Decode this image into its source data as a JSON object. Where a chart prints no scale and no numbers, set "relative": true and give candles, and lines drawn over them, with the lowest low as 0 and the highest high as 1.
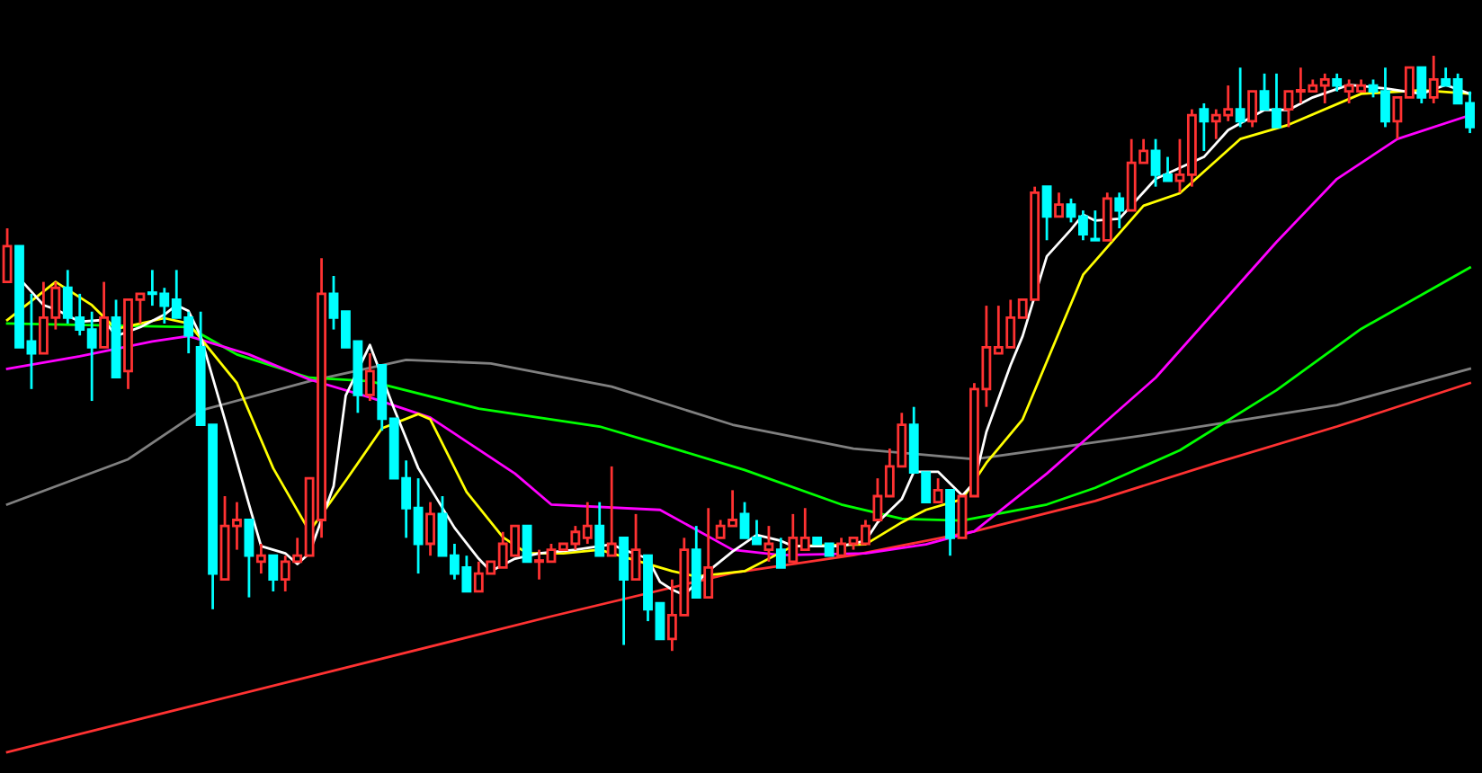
{
  "chart_data": {
    "type": "candlestick",
    "relative": true,
    "grid": false,
    "categories": [
      null,
      null,
      null,
      null,
      null,
      null,
      null,
      null,
      null,
      null,
      null,
      null,
      null,
      null,
      null,
      null,
      null,
      null,
      null,
      null,
      null,
      null,
      null,
      null,
      null,
      null,
      null,
      null,
      null,
      null,
      null,
      null,
      null,
      null,
      null,
      null,
      null,
      null,
      null,
      null,
      null,
      null,
      null,
      null,
      null,
      null,
      null,
      null,
      null,
      null,
      null,
      null,
      null,
      null,
      null,
      null,
      null,
      null,
      null,
      null,
      null,
      null,
      null,
      null,
      null,
      null,
      null,
      null,
      null,
      null,
      null,
      null,
      null,
      null,
      null,
      null,
      null,
      null,
      null,
      null,
      null,
      null,
      null,
      null,
      null,
      null,
      null,
      null,
      null,
      null,
      null,
      null,
      null,
      null,
      null,
      null,
      null,
      null,
      null,
      null,
      null,
      null,
      null,
      null,
      null,
      null,
      null,
      null,
      null,
      null,
      null,
      null,
      null,
      null,
      null,
      null,
      null,
      null,
      null,
      null,
      null,
      null
    ],
    "series": [
      {
        "ohlc": [
          [
            0.62,
            0.71,
            0.62,
            0.68
          ],
          [
            0.68,
            0.68,
            0.51,
            0.51
          ],
          [
            0.52,
            0.6,
            0.44,
            0.5
          ],
          [
            0.5,
            0.62,
            0.5,
            0.56
          ],
          [
            0.56,
            0.62,
            0.54,
            0.61
          ],
          [
            0.61,
            0.64,
            0.55,
            0.56
          ],
          [
            0.56,
            0.6,
            0.53,
            0.54
          ],
          [
            0.54,
            0.57,
            0.42,
            0.51
          ],
          [
            0.51,
            0.62,
            0.51,
            0.56
          ],
          [
            0.56,
            0.59,
            0.46,
            0.46
          ],
          [
            0.47,
            0.59,
            0.44,
            0.59
          ],
          [
            0.59,
            0.6,
            0.55,
            0.6
          ],
          [
            0.6,
            0.64,
            0.58,
            0.6
          ],
          [
            0.6,
            0.61,
            0.55,
            0.58
          ],
          [
            0.59,
            0.64,
            0.56,
            0.56
          ],
          [
            0.56,
            0.57,
            0.5,
            0.53
          ],
          [
            0.51,
            0.57,
            0.38,
            0.38
          ],
          [
            0.38,
            0.38,
            0.07,
            0.13
          ],
          [
            0.12,
            0.26,
            0.12,
            0.21
          ],
          [
            0.21,
            0.25,
            0.17,
            0.22
          ],
          [
            0.22,
            0.22,
            0.09,
            0.16
          ],
          [
            0.15,
            0.18,
            0.13,
            0.16
          ],
          [
            0.16,
            0.16,
            0.1,
            0.12
          ],
          [
            0.12,
            0.16,
            0.1,
            0.15
          ],
          [
            0.15,
            0.19,
            0.15,
            0.16
          ],
          [
            0.16,
            0.29,
            0.16,
            0.29
          ],
          [
            0.22,
            0.66,
            0.19,
            0.6
          ],
          [
            0.6,
            0.63,
            0.54,
            0.56
          ],
          [
            0.57,
            0.57,
            0.51,
            0.51
          ],
          [
            0.52,
            0.52,
            0.4,
            0.43
          ],
          [
            0.43,
            0.5,
            0.42,
            0.47
          ],
          [
            0.48,
            0.48,
            0.37,
            0.39
          ],
          [
            0.39,
            0.39,
            0.29,
            0.29
          ],
          [
            0.29,
            0.32,
            0.19,
            0.24
          ],
          [
            0.24,
            0.29,
            0.13,
            0.18
          ],
          [
            0.18,
            0.25,
            0.16,
            0.23
          ],
          [
            0.23,
            0.26,
            0.16,
            0.16
          ],
          [
            0.16,
            0.18,
            0.12,
            0.13
          ],
          [
            0.14,
            0.16,
            0.1,
            0.1
          ],
          [
            0.1,
            0.15,
            0.1,
            0.13
          ],
          [
            0.13,
            0.15,
            0.13,
            0.15
          ],
          [
            0.14,
            0.2,
            0.14,
            0.18
          ],
          [
            0.16,
            0.21,
            0.16,
            0.21
          ],
          [
            0.21,
            0.21,
            0.15,
            0.15
          ],
          [
            0.15,
            0.17,
            0.12,
            0.15
          ],
          [
            0.15,
            0.18,
            0.15,
            0.17
          ],
          [
            0.17,
            0.18,
            0.17,
            0.18
          ],
          [
            0.18,
            0.21,
            0.17,
            0.2
          ],
          [
            0.19,
            0.25,
            0.18,
            0.21
          ],
          [
            0.21,
            0.25,
            0.16,
            0.16
          ],
          [
            0.16,
            0.31,
            0.16,
            0.18
          ],
          [
            0.19,
            0.19,
            0.01,
            0.12
          ],
          [
            0.12,
            0.23,
            0.12,
            0.17
          ],
          [
            0.16,
            0.16,
            0.05,
            0.07
          ],
          [
            0.08,
            0.08,
            0.02,
            0.02
          ],
          [
            0.02,
            0.12,
            0.0,
            0.06
          ],
          [
            0.06,
            0.19,
            0.06,
            0.17
          ],
          [
            0.17,
            0.21,
            0.09,
            0.09
          ],
          [
            0.09,
            0.24,
            0.09,
            0.14
          ],
          [
            0.19,
            0.22,
            0.19,
            0.21
          ],
          [
            0.21,
            0.27,
            0.21,
            0.22
          ],
          [
            0.23,
            0.25,
            0.19,
            0.19
          ],
          [
            0.19,
            0.22,
            0.18,
            0.18
          ],
          [
            0.17,
            0.21,
            0.15,
            0.18
          ],
          [
            0.17,
            0.19,
            0.14,
            0.14
          ],
          [
            0.15,
            0.23,
            0.15,
            0.19
          ],
          [
            0.17,
            0.24,
            0.17,
            0.19
          ],
          [
            0.19,
            0.19,
            0.18,
            0.18
          ],
          [
            0.18,
            0.18,
            0.16,
            0.16
          ],
          [
            0.16,
            0.19,
            0.16,
            0.18
          ],
          [
            0.18,
            0.19,
            0.17,
            0.19
          ],
          [
            0.18,
            0.22,
            0.18,
            0.21
          ],
          [
            0.22,
            0.29,
            0.22,
            0.26
          ],
          [
            0.26,
            0.34,
            0.26,
            0.31
          ],
          [
            0.31,
            0.4,
            0.31,
            0.38
          ],
          [
            0.38,
            0.41,
            0.3,
            0.3
          ],
          [
            0.3,
            0.3,
            0.25,
            0.25
          ],
          [
            0.25,
            0.29,
            0.25,
            0.27
          ],
          [
            0.27,
            0.27,
            0.16,
            0.19
          ],
          [
            0.19,
            0.26,
            0.19,
            0.26
          ],
          [
            0.26,
            0.45,
            0.26,
            0.44
          ],
          [
            0.44,
            0.58,
            0.41,
            0.51
          ],
          [
            0.5,
            0.58,
            0.5,
            0.51
          ],
          [
            0.51,
            0.59,
            0.51,
            0.56
          ],
          [
            0.56,
            0.59,
            0.56,
            0.59
          ],
          [
            0.59,
            0.78,
            0.59,
            0.77
          ],
          [
            0.78,
            0.78,
            0.69,
            0.73
          ],
          [
            0.73,
            0.77,
            0.73,
            0.75
          ],
          [
            0.75,
            0.76,
            0.72,
            0.73
          ],
          [
            0.73,
            0.74,
            0.69,
            0.7
          ],
          [
            0.69,
            0.74,
            0.69,
            0.69
          ],
          [
            0.69,
            0.77,
            0.69,
            0.76
          ],
          [
            0.76,
            0.77,
            0.71,
            0.74
          ],
          [
            0.74,
            0.86,
            0.74,
            0.82
          ],
          [
            0.82,
            0.86,
            0.82,
            0.84
          ],
          [
            0.84,
            0.86,
            0.78,
            0.8
          ],
          [
            0.8,
            0.83,
            0.79,
            0.79
          ],
          [
            0.79,
            0.86,
            0.77,
            0.8
          ],
          [
            0.8,
            0.91,
            0.78,
            0.9
          ],
          [
            0.91,
            0.92,
            0.84,
            0.89
          ],
          [
            0.89,
            0.91,
            0.86,
            0.9
          ],
          [
            0.9,
            0.95,
            0.89,
            0.91
          ],
          [
            0.91,
            0.98,
            0.88,
            0.89
          ],
          [
            0.89,
            0.94,
            0.88,
            0.94
          ],
          [
            0.94,
            0.97,
            0.91,
            0.91
          ],
          [
            0.91,
            0.97,
            0.88,
            0.88
          ],
          [
            0.91,
            0.94,
            0.88,
            0.94
          ],
          [
            0.94,
            0.98,
            0.92,
            0.94
          ],
          [
            0.94,
            0.96,
            0.94,
            0.95
          ],
          [
            0.95,
            0.97,
            0.92,
            0.96
          ],
          [
            0.96,
            0.97,
            0.94,
            0.95
          ],
          [
            0.94,
            0.96,
            0.92,
            0.95
          ],
          [
            0.94,
            0.96,
            0.94,
            0.95
          ],
          [
            0.95,
            0.96,
            0.93,
            0.94
          ],
          [
            0.94,
            0.98,
            0.88,
            0.89
          ],
          [
            0.89,
            0.93,
            0.86,
            0.93
          ],
          [
            0.93,
            0.98,
            0.93,
            0.98
          ],
          [
            0.98,
            0.98,
            0.92,
            0.93
          ],
          [
            0.93,
            1.0,
            0.92,
            0.96
          ],
          [
            0.96,
            0.98,
            0.95,
            0.95
          ],
          [
            0.96,
            0.97,
            0.92,
            0.92
          ],
          [
            0.92,
            0.94,
            0.87,
            0.88
          ]
        ],
        "colors": [
          "#ff3232",
          "#00ffff",
          "#00ffff",
          "#ff3232",
          "#ff3232",
          "#00ffff",
          "#00ffff",
          "#00ffff",
          "#ff3232",
          "#00ffff",
          "#ff3232",
          "#ff3232",
          "#00ffff",
          "#00ffff",
          "#00ffff",
          "#00ffff",
          "#00ffff",
          "#00ffff",
          "#ff3232",
          "#ff3232",
          "#00ffff",
          "#ff3232",
          "#00ffff",
          "#ff3232",
          "#ff3232",
          "#ff3232",
          "#ff3232",
          "#00ffff",
          "#00ffff",
          "#00ffff",
          "#ff3232",
          "#00ffff",
          "#00ffff",
          "#00ffff",
          "#00ffff",
          "#ff3232",
          "#00ffff",
          "#00ffff",
          "#00ffff",
          "#ff3232",
          "#ff3232",
          "#ff3232",
          "#ff3232",
          "#00ffff",
          "#ff3232",
          "#ff3232",
          "#ff3232",
          "#ff3232",
          "#ff3232",
          "#00ffff",
          "#ff3232",
          "#00ffff",
          "#ff3232",
          "#00ffff",
          "#00ffff",
          "#ff3232",
          "#ff3232",
          "#00ffff",
          "#ff3232",
          "#ff3232",
          "#ff3232",
          "#00ffff",
          "#00ffff",
          "#ff3232",
          "#00ffff",
          "#ff3232",
          "#ff3232",
          "#00ffff",
          "#00ffff",
          "#ff3232",
          "#ff3232",
          "#ff3232",
          "#ff3232",
          "#ff3232",
          "#ff3232",
          "#00ffff",
          "#00ffff",
          "#ff3232",
          "#00ffff",
          "#ff3232",
          "#ff3232",
          "#ff3232",
          "#ff3232",
          "#ff3232",
          "#ff3232",
          "#ff3232",
          "#00ffff",
          "#ff3232",
          "#00ffff",
          "#00ffff",
          "#00ffff",
          "#ff3232",
          "#00ffff",
          "#ff3232",
          "#ff3232",
          "#00ffff",
          "#00ffff",
          "#ff3232",
          "#ff3232",
          "#00ffff",
          "#ff3232",
          "#ff3232",
          "#00ffff",
          "#ff3232",
          "#00ffff",
          "#00ffff",
          "#ff3232",
          "#ff3232",
          "#ff3232",
          "#ff3232",
          "#00ffff",
          "#ff3232",
          "#ff3232",
          "#00ffff",
          "#00ffff",
          "#ff3232",
          "#ff3232",
          "#00ffff",
          "#ff3232",
          "#00ffff",
          "#00ffff",
          "#00ffff"
        ]
      },
      {
        "type": "line",
        "color": "#ff3232",
        "values": [
          -0.17,
          null,
          null,
          null,
          null,
          null,
          null,
          null,
          null,
          null,
          null,
          null,
          null,
          null,
          null,
          -0.094,
          null,
          null,
          null,
          null,
          null,
          null,
          null,
          null,
          null,
          null,
          null,
          null,
          null,
          null,
          -0.018,
          null,
          null,
          null,
          null,
          null,
          null,
          null,
          null,
          null,
          null,
          null,
          null,
          null,
          null,
          0.058,
          null,
          null,
          null,
          null,
          null,
          null,
          null,
          null,
          null,
          null,
          null,
          null,
          null,
          null,
          0.131,
          null,
          null,
          null,
          null,
          null,
          null,
          null,
          null,
          null,
          0.161,
          null,
          null,
          null,
          null,
          null,
          null,
          null,
          null,
          null,
          0.201,
          null,
          null,
          null,
          null,
          null,
          null,
          null,
          null,
          null,
          0.252,
          null,
          null,
          null,
          null,
          null,
          null,
          null,
          null,
          null,
          0.316,
          null,
          null,
          null,
          null,
          null,
          null,
          null,
          null,
          null,
          0.377,
          null,
          null,
          null,
          null,
          null,
          null,
          null,
          null,
          null,
          null,
          0.45
        ]
      },
      {
        "type": "line",
        "color": "#808080",
        "values": [
          0.246,
          null,
          null,
          null,
          null,
          null,
          null,
          null,
          null,
          null,
          0.322,
          null,
          null,
          null,
          null,
          null,
          0.404,
          null,
          null,
          null,
          null,
          null,
          null,
          null,
          null,
          0.453,
          null,
          null,
          null,
          null,
          null,
          null,
          null,
          0.489,
          null,
          null,
          null,
          null,
          null,
          null,
          0.483,
          null,
          null,
          null,
          null,
          null,
          null,
          null,
          null,
          null,
          0.444,
          null,
          null,
          null,
          null,
          null,
          null,
          null,
          null,
          null,
          0.38,
          null,
          null,
          null,
          null,
          null,
          null,
          null,
          null,
          null,
          0.34,
          null,
          null,
          null,
          null,
          null,
          null,
          null,
          null,
          null,
          0.322,
          null,
          null,
          null,
          null,
          null,
          null,
          null,
          null,
          null,
          null,
          null,
          null,
          null,
          null,
          0.365,
          null,
          null,
          null,
          null,
          null,
          null,
          null,
          null,
          null,
          null,
          null,
          null,
          null,
          null,
          0.413,
          null,
          null,
          null,
          null,
          null,
          null,
          null,
          null,
          null,
          null,
          0.474
        ]
      },
      {
        "type": "line",
        "color": "#00ff00",
        "values": [
          0.55,
          null,
          null,
          null,
          null,
          null,
          null,
          null,
          null,
          null,
          null,
          null,
          null,
          null,
          null,
          0.544,
          null,
          null,
          null,
          0.498,
          null,
          null,
          null,
          null,
          null,
          0.459,
          null,
          null,
          null,
          null,
          0.453,
          null,
          null,
          null,
          null,
          null,
          null,
          null,
          null,
          0.407,
          null,
          null,
          null,
          null,
          null,
          null,
          null,
          null,
          null,
          0.377,
          null,
          null,
          null,
          null,
          0.347,
          null,
          null,
          null,
          null,
          null,
          null,
          0.304,
          null,
          null,
          null,
          null,
          null,
          null,
          null,
          0.246,
          null,
          null,
          null,
          null,
          0.222,
          null,
          null,
          null,
          null,
          0.219,
          null,
          null,
          null,
          null,
          null,
          null,
          0.246,
          null,
          null,
          null,
          0.274,
          null,
          null,
          null,
          null,
          null,
          null,
          0.337,
          null,
          null,
          null,
          null,
          null,
          null,
          null,
          0.438,
          null,
          null,
          null,
          null,
          null,
          null,
          0.541,
          null,
          null,
          null,
          null,
          null,
          null,
          null,
          null,
          0.644
        ]
      },
      {
        "type": "line",
        "color": "#ff00ff",
        "values": [
          0.474,
          null,
          null,
          null,
          null,
          null,
          0.495,
          null,
          null,
          null,
          null,
          null,
          0.52,
          null,
          null,
          0.529,
          null,
          null,
          null,
          null,
          0.498,
          null,
          null,
          null,
          null,
          0.456,
          null,
          null,
          null,
          null,
          0.426,
          null,
          null,
          null,
          null,
          0.392,
          null,
          null,
          null,
          null,
          null,
          null,
          0.298,
          null,
          null,
          0.246,
          null,
          null,
          null,
          null,
          null,
          null,
          null,
          null,
          0.237,
          null,
          null,
          null,
          null,
          null,
          0.17,
          null,
          null,
          null,
          0.161,
          null,
          null,
          null,
          null,
          null,
          null,
          0.164,
          null,
          null,
          null,
          null,
          0.179,
          null,
          null,
          null,
          0.201,
          null,
          null,
          null,
          null,
          null,
          0.298,
          null,
          null,
          null,
          null,
          null,
          null,
          null,
          null,
          0.459,
          null,
          null,
          null,
          null,
          null,
          null,
          null,
          null,
          null,
          0.687,
          null,
          null,
          null,
          null,
          0.793,
          null,
          null,
          null,
          null,
          0.86,
          null,
          null,
          null,
          null,
          null,
          0.9
        ]
      },
      {
        "type": "line",
        "color": "#ffff00",
        "values": [
          0.556,
          null,
          null,
          null,
          0.62,
          null,
          null,
          0.581,
          null,
          0.541,
          null,
          null,
          null,
          0.559,
          null,
          0.55,
          null,
          null,
          null,
          0.45,
          null,
          null,
          0.307,
          null,
          null,
          0.201,
          null,
          null,
          0.286,
          null,
          null,
          0.374,
          null,
          null,
          0.398,
          0.389,
          null,
          null,
          0.267,
          null,
          null,
          0.191,
          null,
          0.164,
          null,
          null,
          0.164,
          null,
          null,
          0.17,
          null,
          null,
          null,
          null,
          null,
          0.134,
          null,
          0.125,
          null,
          null,
          null,
          0.134,
          null,
          null,
          null,
          0.176,
          null,
          null,
          null,
          null,
          null,
          0.179,
          null,
          null,
          0.216,
          null,
          0.237,
          null,
          null,
          0.255,
          null,
          0.316,
          null,
          null,
          0.389,
          null,
          null,
          null,
          null,
          0.632,
          null,
          null,
          null,
          null,
          0.748,
          null,
          null,
          0.769,
          null,
          null,
          null,
          null,
          0.86,
          null,
          null,
          null,
          0.884,
          null,
          null,
          null,
          null,
          null,
          0.936,
          null,
          null,
          null,
          null,
          0.942,
          null,
          null,
          null,
          0.936
        ]
      },
      {
        "type": "line",
        "color": "#ffffff",
        "values": [
          null,
          0.626,
          null,
          0.581,
          0.574,
          null,
          0.553,
          null,
          0.556,
          0.529,
          null,
          0.544,
          null,
          0.565,
          0.581,
          0.571,
          0.529,
          null,
          0.389,
          null,
          0.246,
          0.176,
          null,
          0.164,
          0.146,
          0.164,
          null,
          0.277,
          0.429,
          null,
          0.514,
          null,
          0.407,
          null,
          0.307,
          null,
          null,
          0.207,
          null,
          0.155,
          0.134,
          null,
          0.155,
          null,
          0.164,
          null,
          null,
          0.17,
          null,
          0.176,
          0.179,
          0.17,
          null,
          0.155,
          0.116,
          0.103,
          0.094,
          null,
          0.134,
          null,
          0.167,
          null,
          0.195,
          null,
          0.185,
          0.176,
          null,
          null,
          null,
          0.176,
          null,
          0.185,
          0.216,
          null,
          0.255,
          0.301,
          null,
          0.301,
          null,
          0.261,
          0.283,
          0.368,
          null,
          0.48,
          0.529,
          null,
          0.663,
          null,
          0.708,
          0.733,
          0.723,
          null,
          0.726,
          null,
          null,
          0.793,
          null,
          null,
          null,
          0.83,
          null,
          0.875,
          null,
          null,
          0.909,
          null,
          0.909,
          null,
          0.93,
          null,
          null,
          0.951,
          null,
          null,
          0.945,
          null,
          null,
          0.936,
          null,
          0.951,
          null,
          0.936
        ]
      }
    ]
  }
}
